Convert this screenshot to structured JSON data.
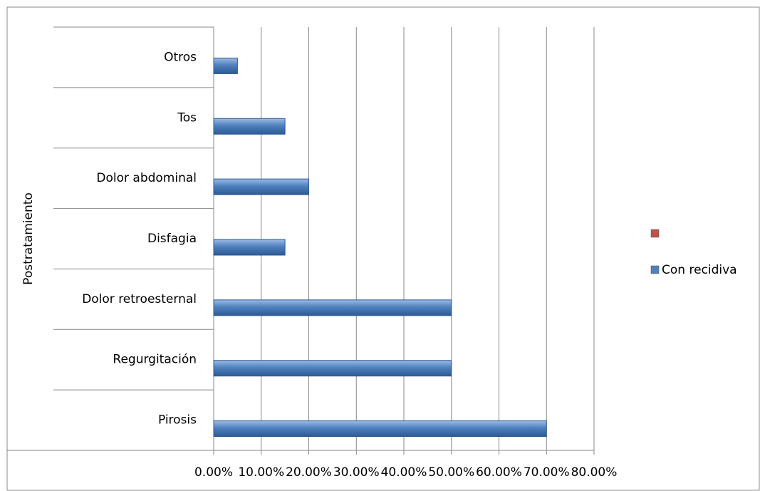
{
  "chart_data": {
    "type": "bar",
    "orientation": "horizontal",
    "y_label": "Postratamiento",
    "categories": [
      "Pirosis",
      "Regurgitación",
      "Dolor retroesternal",
      "Disfagia",
      "Dolor abdominal",
      "Tos",
      "Otros"
    ],
    "series": [
      {
        "name": null,
        "color": "#c0504d",
        "values": [
          null,
          null,
          null,
          null,
          null,
          null,
          null
        ]
      },
      {
        "name": "Con recidiva",
        "color": "#4f81bd",
        "values": [
          70,
          50,
          50,
          15,
          20,
          15,
          5
        ]
      }
    ],
    "xlim": [
      0,
      80
    ],
    "xticks": [
      {
        "value": 0,
        "label": "0.00%"
      },
      {
        "value": 10,
        "label": "10.00%"
      },
      {
        "value": 20,
        "label": "20.00%"
      },
      {
        "value": 30,
        "label": "30.00%"
      },
      {
        "value": 40,
        "label": "40.00%"
      },
      {
        "value": 50,
        "label": "50.00%"
      },
      {
        "value": 60,
        "label": "60.00%"
      },
      {
        "value": 70,
        "label": "70.00%"
      },
      {
        "value": 80,
        "label": "80.00%"
      }
    ],
    "grid": true,
    "legend": "right"
  }
}
